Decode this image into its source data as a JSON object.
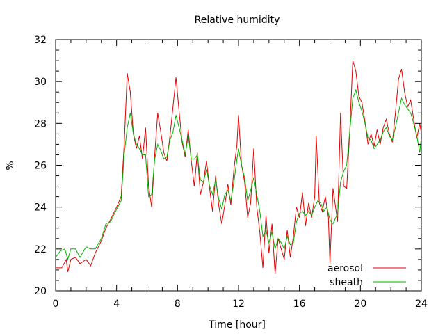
{
  "chart_data": {
    "type": "line",
    "title": "Relative humidity",
    "xlabel": "Time [hour]",
    "ylabel": "%",
    "xlim": [
      0,
      24
    ],
    "ylim": [
      20,
      32
    ],
    "x_ticks": [
      0,
      4,
      8,
      12,
      16,
      20,
      24
    ],
    "y_ticks": [
      20,
      22,
      24,
      26,
      28,
      30,
      32
    ],
    "grid": false,
    "legend_position": "bottom-right",
    "series": [
      {
        "name": "aerosol",
        "color": "#e00000",
        "points": [
          [
            0.0,
            21.1
          ],
          [
            0.4,
            21.1
          ],
          [
            0.7,
            21.5
          ],
          [
            0.8,
            20.9
          ],
          [
            1.0,
            21.5
          ],
          [
            1.3,
            21.6
          ],
          [
            1.6,
            21.3
          ],
          [
            2.0,
            21.5
          ],
          [
            2.3,
            21.2
          ],
          [
            2.6,
            21.8
          ],
          [
            3.0,
            22.4
          ],
          [
            3.3,
            23.0
          ],
          [
            3.6,
            23.4
          ],
          [
            4.0,
            24.0
          ],
          [
            4.3,
            24.5
          ],
          [
            4.5,
            27.0
          ],
          [
            4.7,
            30.4
          ],
          [
            4.9,
            29.5
          ],
          [
            5.1,
            27.5
          ],
          [
            5.3,
            26.8
          ],
          [
            5.5,
            27.4
          ],
          [
            5.7,
            26.3
          ],
          [
            5.9,
            27.8
          ],
          [
            6.1,
            25.0
          ],
          [
            6.3,
            24.0
          ],
          [
            6.5,
            26.5
          ],
          [
            6.7,
            28.5
          ],
          [
            6.9,
            27.6
          ],
          [
            7.1,
            26.6
          ],
          [
            7.3,
            26.2
          ],
          [
            7.5,
            27.4
          ],
          [
            7.7,
            28.8
          ],
          [
            7.9,
            30.2
          ],
          [
            8.1,
            28.6
          ],
          [
            8.3,
            27.1
          ],
          [
            8.5,
            26.4
          ],
          [
            8.7,
            27.7
          ],
          [
            8.9,
            26.2
          ],
          [
            9.1,
            25.0
          ],
          [
            9.3,
            26.6
          ],
          [
            9.5,
            24.6
          ],
          [
            9.7,
            25.2
          ],
          [
            9.9,
            26.2
          ],
          [
            10.1,
            24.9
          ],
          [
            10.3,
            23.8
          ],
          [
            10.5,
            25.5
          ],
          [
            10.7,
            24.1
          ],
          [
            10.9,
            23.2
          ],
          [
            11.1,
            24.1
          ],
          [
            11.3,
            25.1
          ],
          [
            11.5,
            24.1
          ],
          [
            11.7,
            25.8
          ],
          [
            11.9,
            27.0
          ],
          [
            12.0,
            28.4
          ],
          [
            12.2,
            26.0
          ],
          [
            12.4,
            25.2
          ],
          [
            12.6,
            23.5
          ],
          [
            12.8,
            24.2
          ],
          [
            13.0,
            26.8
          ],
          [
            13.2,
            24.0
          ],
          [
            13.4,
            22.8
          ],
          [
            13.6,
            21.1
          ],
          [
            13.8,
            23.6
          ],
          [
            14.0,
            21.8
          ],
          [
            14.2,
            23.2
          ],
          [
            14.4,
            20.8
          ],
          [
            14.6,
            22.5
          ],
          [
            14.8,
            22.0
          ],
          [
            15.0,
            21.5
          ],
          [
            15.2,
            22.9
          ],
          [
            15.4,
            21.6
          ],
          [
            15.6,
            22.6
          ],
          [
            15.8,
            24.0
          ],
          [
            16.0,
            23.5
          ],
          [
            16.2,
            24.7
          ],
          [
            16.4,
            23.1
          ],
          [
            16.6,
            24.2
          ],
          [
            16.8,
            23.5
          ],
          [
            17.0,
            24.5
          ],
          [
            17.1,
            27.4
          ],
          [
            17.3,
            24.2
          ],
          [
            17.5,
            23.8
          ],
          [
            17.7,
            24.5
          ],
          [
            17.9,
            23.5
          ],
          [
            18.0,
            21.3
          ],
          [
            18.2,
            24.9
          ],
          [
            18.5,
            23.3
          ],
          [
            18.7,
            28.5
          ],
          [
            18.9,
            25.0
          ],
          [
            19.1,
            24.9
          ],
          [
            19.3,
            27.6
          ],
          [
            19.5,
            31.0
          ],
          [
            19.7,
            30.5
          ],
          [
            19.9,
            29.3
          ],
          [
            20.1,
            29.0
          ],
          [
            20.3,
            28.1
          ],
          [
            20.5,
            27.0
          ],
          [
            20.7,
            27.5
          ],
          [
            20.9,
            26.9
          ],
          [
            21.1,
            27.7
          ],
          [
            21.3,
            27.0
          ],
          [
            21.5,
            27.8
          ],
          [
            21.7,
            28.2
          ],
          [
            21.9,
            27.5
          ],
          [
            22.1,
            27.1
          ],
          [
            22.3,
            28.5
          ],
          [
            22.5,
            30.1
          ],
          [
            22.7,
            30.6
          ],
          [
            22.9,
            29.5
          ],
          [
            23.1,
            28.8
          ],
          [
            23.3,
            29.1
          ],
          [
            23.5,
            28.2
          ],
          [
            23.7,
            27.3
          ],
          [
            23.9,
            28.0
          ],
          [
            24.0,
            27.5
          ]
        ]
      },
      {
        "name": "sheath",
        "color": "#00b000",
        "points": [
          [
            0.0,
            21.6
          ],
          [
            0.3,
            21.9
          ],
          [
            0.6,
            22.0
          ],
          [
            0.8,
            21.5
          ],
          [
            1.0,
            22.0
          ],
          [
            1.3,
            22.0
          ],
          [
            1.6,
            21.6
          ],
          [
            2.0,
            22.1
          ],
          [
            2.3,
            22.0
          ],
          [
            2.6,
            22.0
          ],
          [
            3.0,
            22.5
          ],
          [
            3.3,
            23.2
          ],
          [
            3.6,
            23.3
          ],
          [
            4.0,
            23.9
          ],
          [
            4.3,
            24.3
          ],
          [
            4.5,
            26.5
          ],
          [
            4.7,
            27.8
          ],
          [
            4.9,
            28.5
          ],
          [
            5.1,
            27.5
          ],
          [
            5.3,
            27.0
          ],
          [
            5.5,
            26.8
          ],
          [
            5.7,
            26.5
          ],
          [
            5.9,
            26.5
          ],
          [
            6.1,
            24.5
          ],
          [
            6.3,
            24.6
          ],
          [
            6.5,
            26.3
          ],
          [
            6.7,
            27.0
          ],
          [
            6.9,
            26.7
          ],
          [
            7.1,
            26.3
          ],
          [
            7.3,
            26.4
          ],
          [
            7.5,
            27.2
          ],
          [
            7.7,
            27.6
          ],
          [
            7.9,
            28.4
          ],
          [
            8.1,
            27.8
          ],
          [
            8.3,
            27.2
          ],
          [
            8.5,
            26.5
          ],
          [
            8.7,
            27.4
          ],
          [
            8.9,
            26.3
          ],
          [
            9.1,
            26.3
          ],
          [
            9.3,
            26.5
          ],
          [
            9.5,
            25.3
          ],
          [
            9.7,
            25.2
          ],
          [
            9.9,
            25.8
          ],
          [
            10.1,
            25.0
          ],
          [
            10.3,
            24.6
          ],
          [
            10.5,
            25.3
          ],
          [
            10.7,
            24.4
          ],
          [
            10.9,
            23.9
          ],
          [
            11.1,
            24.6
          ],
          [
            11.3,
            24.8
          ],
          [
            11.5,
            24.3
          ],
          [
            11.7,
            25.2
          ],
          [
            11.9,
            26.3
          ],
          [
            12.0,
            26.8
          ],
          [
            12.2,
            26.0
          ],
          [
            12.4,
            25.4
          ],
          [
            12.6,
            24.3
          ],
          [
            12.8,
            24.8
          ],
          [
            13.0,
            25.4
          ],
          [
            13.2,
            24.6
          ],
          [
            13.4,
            23.8
          ],
          [
            13.6,
            22.6
          ],
          [
            13.8,
            22.9
          ],
          [
            14.0,
            22.3
          ],
          [
            14.2,
            22.8
          ],
          [
            14.4,
            22.0
          ],
          [
            14.6,
            22.5
          ],
          [
            14.8,
            22.3
          ],
          [
            15.0,
            22.0
          ],
          [
            15.2,
            22.6
          ],
          [
            15.4,
            22.2
          ],
          [
            15.6,
            22.3
          ],
          [
            15.8,
            23.3
          ],
          [
            16.0,
            23.7
          ],
          [
            16.2,
            23.8
          ],
          [
            16.4,
            23.6
          ],
          [
            16.6,
            23.8
          ],
          [
            16.8,
            23.6
          ],
          [
            17.0,
            24.0
          ],
          [
            17.2,
            24.3
          ],
          [
            17.4,
            24.2
          ],
          [
            17.6,
            23.8
          ],
          [
            17.8,
            24.0
          ],
          [
            18.0,
            23.4
          ],
          [
            18.2,
            23.2
          ],
          [
            18.5,
            23.7
          ],
          [
            18.7,
            25.2
          ],
          [
            18.9,
            25.7
          ],
          [
            19.1,
            26.0
          ],
          [
            19.3,
            27.6
          ],
          [
            19.5,
            29.2
          ],
          [
            19.7,
            29.6
          ],
          [
            19.9,
            29.0
          ],
          [
            20.1,
            28.6
          ],
          [
            20.3,
            28.0
          ],
          [
            20.5,
            27.3
          ],
          [
            20.7,
            27.2
          ],
          [
            20.9,
            26.8
          ],
          [
            21.1,
            27.0
          ],
          [
            21.3,
            27.2
          ],
          [
            21.5,
            27.6
          ],
          [
            21.7,
            27.8
          ],
          [
            21.9,
            27.4
          ],
          [
            22.1,
            27.2
          ],
          [
            22.3,
            27.8
          ],
          [
            22.5,
            28.5
          ],
          [
            22.7,
            29.2
          ],
          [
            22.9,
            28.9
          ],
          [
            23.1,
            28.7
          ],
          [
            23.3,
            28.5
          ],
          [
            23.5,
            28.0
          ],
          [
            23.7,
            27.4
          ],
          [
            23.9,
            26.6
          ],
          [
            24.0,
            27.4
          ]
        ]
      }
    ]
  }
}
